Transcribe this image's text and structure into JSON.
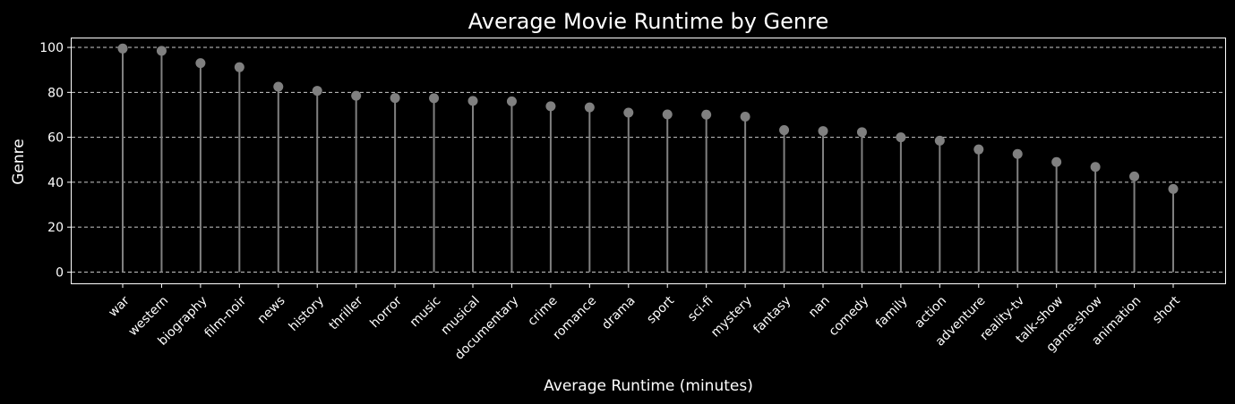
{
  "chart_data": {
    "type": "lollipop",
    "title": "Average Movie Runtime by Genre",
    "xlabel": "Average Runtime (minutes)",
    "ylabel": "Genre",
    "ylim": [
      -5,
      104
    ],
    "yticks": [
      0,
      20,
      40,
      60,
      80,
      100
    ],
    "grid": "horizontal dashed",
    "categories": [
      "war",
      "western",
      "biography",
      "film-noir",
      "news",
      "history",
      "thriller",
      "horror",
      "music",
      "musical",
      "documentary",
      "crime",
      "romance",
      "drama",
      "sport",
      "sci-fi",
      "mystery",
      "fantasy",
      "nan",
      "comedy",
      "family",
      "action",
      "adventure",
      "reality-tv",
      "talk-show",
      "game-show",
      "animation",
      "short"
    ],
    "values": [
      99.5,
      98.5,
      93,
      91.2,
      82.5,
      80.7,
      78.5,
      77.5,
      77.4,
      76.2,
      76.0,
      73.8,
      73.3,
      71.0,
      70.2,
      70.1,
      69.2,
      63.2,
      62.8,
      62.3,
      60.0,
      58.5,
      54.6,
      52.6,
      49.0,
      46.8,
      42.6,
      37.0
    ]
  },
  "colors": {
    "background": "#000000",
    "stem": "#808080",
    "marker": "#808080",
    "grid": "#cccccc",
    "axes": "#ffffff",
    "text": "#ffffff"
  }
}
